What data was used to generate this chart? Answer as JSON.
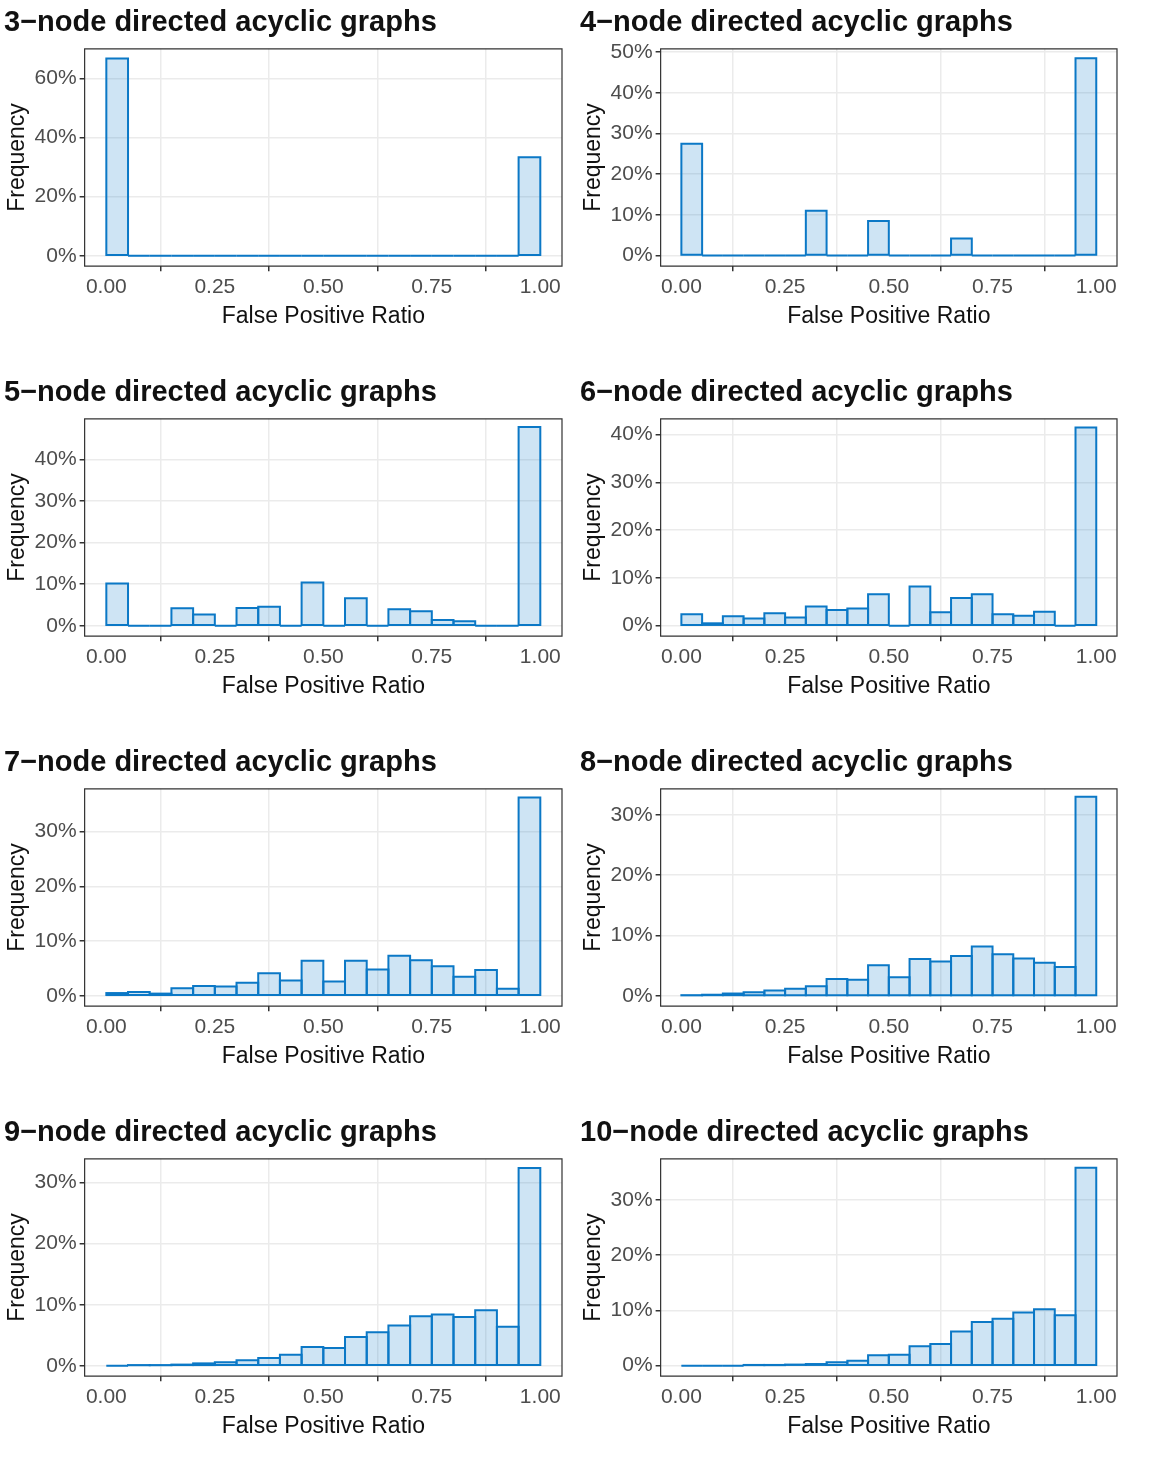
{
  "chart_data": [
    {
      "type": "histogram",
      "title": "3−node directed acyclic graphs",
      "xlabel": "False Positive Ratio",
      "ylabel": "Frequency",
      "color": "#0b78c6",
      "grid": true,
      "bins": [
        0,
        0.05,
        0.1,
        0.15,
        0.2,
        0.25,
        0.3,
        0.35,
        0.4,
        0.45,
        0.5,
        0.55,
        0.6,
        0.65,
        0.7,
        0.75,
        0.8,
        0.85,
        0.9,
        0.95,
        1
      ],
      "values": [
        66.7,
        0,
        0,
        0,
        0,
        0,
        0,
        0,
        0,
        0,
        0,
        0,
        0,
        0,
        0,
        0,
        0,
        0,
        0,
        33.3
      ],
      "xlim": [
        -0.05,
        1.05
      ],
      "xticks": [
        {
          "value": 0,
          "label": "0.00"
        },
        {
          "value": 0.25,
          "label": "0.25"
        },
        {
          "value": 0.5,
          "label": "0.50"
        },
        {
          "value": 0.75,
          "label": "0.75"
        },
        {
          "value": 1,
          "label": "1.00"
        }
      ],
      "ylim": [
        -3.5,
        70
      ],
      "yticks": [
        {
          "value": 0,
          "label": "0%"
        },
        {
          "value": 20,
          "label": "20%"
        },
        {
          "value": 40,
          "label": "40%"
        },
        {
          "value": 60,
          "label": "60%"
        }
      ]
    },
    {
      "type": "histogram",
      "title": "4−node directed acyclic graphs",
      "xlabel": "False Positive Ratio",
      "ylabel": "Frequency",
      "color": "#0b78c6",
      "grid": true,
      "bins": [
        0,
        0.05,
        0.1,
        0.15,
        0.2,
        0.25,
        0.3,
        0.35,
        0.4,
        0.45,
        0.5,
        0.55,
        0.6,
        0.65,
        0.7,
        0.75,
        0.8,
        0.85,
        0.9,
        0.95,
        1
      ],
      "values": [
        27.5,
        0,
        0,
        0,
        0,
        0,
        11,
        0,
        0,
        8.5,
        0,
        0,
        0,
        4.2,
        0,
        0,
        0,
        0,
        0,
        48.5
      ],
      "xlim": [
        -0.05,
        1.05
      ],
      "xticks": [
        {
          "value": 0,
          "label": "0.00"
        },
        {
          "value": 0.25,
          "label": "0.25"
        },
        {
          "value": 0.5,
          "label": "0.50"
        },
        {
          "value": 0.75,
          "label": "0.75"
        },
        {
          "value": 1,
          "label": "1.00"
        }
      ],
      "ylim": [
        -2.6,
        50.8
      ],
      "yticks": [
        {
          "value": 0,
          "label": "0%"
        },
        {
          "value": 10,
          "label": "10%"
        },
        {
          "value": 20,
          "label": "20%"
        },
        {
          "value": 30,
          "label": "30%"
        },
        {
          "value": 40,
          "label": "40%"
        },
        {
          "value": 50,
          "label": "50%"
        }
      ]
    },
    {
      "type": "histogram",
      "title": "5−node directed acyclic graphs",
      "xlabel": "False Positive Ratio",
      "ylabel": "Frequency",
      "color": "#0b78c6",
      "grid": true,
      "bins": [
        0,
        0.05,
        0.1,
        0.15,
        0.2,
        0.25,
        0.3,
        0.35,
        0.4,
        0.45,
        0.5,
        0.55,
        0.6,
        0.65,
        0.7,
        0.75,
        0.8,
        0.85,
        0.9,
        0.95,
        1
      ],
      "values": [
        10.2,
        0,
        0,
        4.2,
        2.7,
        0,
        4.3,
        4.6,
        0,
        10.4,
        0,
        6.6,
        0,
        4,
        3.5,
        1.4,
        1.1,
        0,
        0,
        47.8
      ],
      "xlim": [
        -0.05,
        1.05
      ],
      "xticks": [
        {
          "value": 0,
          "label": "0.00"
        },
        {
          "value": 0.25,
          "label": "0.25"
        },
        {
          "value": 0.5,
          "label": "0.50"
        },
        {
          "value": 0.75,
          "label": "0.75"
        },
        {
          "value": 1,
          "label": "1.00"
        }
      ],
      "ylim": [
        -2.5,
        49.8
      ],
      "yticks": [
        {
          "value": 0,
          "label": "0%"
        },
        {
          "value": 10,
          "label": "10%"
        },
        {
          "value": 20,
          "label": "20%"
        },
        {
          "value": 30,
          "label": "30%"
        },
        {
          "value": 40,
          "label": "40%"
        }
      ]
    },
    {
      "type": "histogram",
      "title": "6−node directed acyclic graphs",
      "xlabel": "False Positive Ratio",
      "ylabel": "Frequency",
      "color": "#0b78c6",
      "grid": true,
      "bins": [
        0,
        0.05,
        0.1,
        0.15,
        0.2,
        0.25,
        0.3,
        0.35,
        0.4,
        0.45,
        0.5,
        0.55,
        0.6,
        0.65,
        0.7,
        0.75,
        0.8,
        0.85,
        0.9,
        0.95,
        1
      ],
      "values": [
        2.4,
        0.5,
        2,
        1.5,
        2.6,
        1.7,
        4,
        3.3,
        3.6,
        6.6,
        0,
        8.2,
        2.8,
        5.8,
        6.6,
        2.4,
        2.1,
        2.9,
        0,
        41.5
      ],
      "xlim": [
        -0.05,
        1.05
      ],
      "xticks": [
        {
          "value": 0,
          "label": "0.00"
        },
        {
          "value": 0.25,
          "label": "0.25"
        },
        {
          "value": 0.5,
          "label": "0.50"
        },
        {
          "value": 0.75,
          "label": "0.75"
        },
        {
          "value": 1,
          "label": "1.00"
        }
      ],
      "ylim": [
        -2.2,
        43.3
      ],
      "yticks": [
        {
          "value": 0,
          "label": "0%"
        },
        {
          "value": 10,
          "label": "10%"
        },
        {
          "value": 20,
          "label": "20%"
        },
        {
          "value": 30,
          "label": "30%"
        },
        {
          "value": 40,
          "label": "40%"
        }
      ]
    },
    {
      "type": "histogram",
      "title": "7−node directed acyclic graphs",
      "xlabel": "False Positive Ratio",
      "ylabel": "Frequency",
      "color": "#0b78c6",
      "grid": true,
      "bins": [
        0,
        0.05,
        0.1,
        0.15,
        0.2,
        0.25,
        0.3,
        0.35,
        0.4,
        0.45,
        0.5,
        0.55,
        0.6,
        0.65,
        0.7,
        0.75,
        0.8,
        0.85,
        0.9,
        0.95,
        1
      ],
      "values": [
        0.5,
        0.7,
        0.4,
        1.4,
        1.8,
        1.7,
        2.4,
        4.1,
        2.8,
        6.4,
        2.6,
        6.4,
        4.8,
        7.3,
        6.5,
        5.4,
        3.5,
        4.7,
        1.3,
        36.2
      ],
      "xlim": [
        -0.05,
        1.05
      ],
      "xticks": [
        {
          "value": 0,
          "label": "0.00"
        },
        {
          "value": 0.25,
          "label": "0.25"
        },
        {
          "value": 0.5,
          "label": "0.50"
        },
        {
          "value": 0.75,
          "label": "0.75"
        },
        {
          "value": 1,
          "label": "1.00"
        }
      ],
      "ylim": [
        -1.9,
        37.8
      ],
      "yticks": [
        {
          "value": 0,
          "label": "0%"
        },
        {
          "value": 10,
          "label": "10%"
        },
        {
          "value": 20,
          "label": "20%"
        },
        {
          "value": 30,
          "label": "30%"
        }
      ]
    },
    {
      "type": "histogram",
      "title": "8−node directed acyclic graphs",
      "xlabel": "False Positive Ratio",
      "ylabel": "Frequency",
      "color": "#0b78c6",
      "grid": true,
      "bins": [
        0,
        0.05,
        0.1,
        0.15,
        0.2,
        0.25,
        0.3,
        0.35,
        0.4,
        0.45,
        0.5,
        0.55,
        0.6,
        0.65,
        0.7,
        0.75,
        0.8,
        0.85,
        0.9,
        0.95,
        1
      ],
      "values": [
        0.1,
        0.2,
        0.4,
        0.6,
        0.9,
        1.2,
        1.6,
        2.8,
        2.7,
        5.1,
        3.1,
        6.1,
        5.7,
        6.6,
        8.2,
        6.9,
        6.2,
        5.5,
        4.8,
        33
      ],
      "xlim": [
        -0.05,
        1.05
      ],
      "xticks": [
        {
          "value": 0,
          "label": "0.00"
        },
        {
          "value": 0.25,
          "label": "0.25"
        },
        {
          "value": 0.5,
          "label": "0.50"
        },
        {
          "value": 0.75,
          "label": "0.75"
        },
        {
          "value": 1,
          "label": "1.00"
        }
      ],
      "ylim": [
        -1.7,
        34.3
      ],
      "yticks": [
        {
          "value": 0,
          "label": "0%"
        },
        {
          "value": 10,
          "label": "10%"
        },
        {
          "value": 20,
          "label": "20%"
        },
        {
          "value": 30,
          "label": "30%"
        }
      ]
    },
    {
      "type": "histogram",
      "title": "9−node directed acyclic graphs",
      "xlabel": "False Positive Ratio",
      "ylabel": "Frequency",
      "color": "#0b78c6",
      "grid": true,
      "bins": [
        0,
        0.05,
        0.1,
        0.15,
        0.2,
        0.25,
        0.3,
        0.35,
        0.4,
        0.45,
        0.5,
        0.55,
        0.6,
        0.65,
        0.7,
        0.75,
        0.8,
        0.85,
        0.9,
        0.95,
        1
      ],
      "values": [
        0,
        0.1,
        0.1,
        0.2,
        0.4,
        0.6,
        0.9,
        1.3,
        1.8,
        3.1,
        2.9,
        4.7,
        5.5,
        6.6,
        8.1,
        8.4,
        8,
        9.1,
        6.4,
        32.4
      ],
      "xlim": [
        -0.05,
        1.05
      ],
      "xticks": [
        {
          "value": 0,
          "label": "0.00"
        },
        {
          "value": 0.25,
          "label": "0.25"
        },
        {
          "value": 0.5,
          "label": "0.50"
        },
        {
          "value": 0.75,
          "label": "0.75"
        },
        {
          "value": 1,
          "label": "1.00"
        }
      ],
      "ylim": [
        -1.7,
        33.9
      ],
      "yticks": [
        {
          "value": 0,
          "label": "0%"
        },
        {
          "value": 10,
          "label": "10%"
        },
        {
          "value": 20,
          "label": "20%"
        },
        {
          "value": 30,
          "label": "30%"
        }
      ]
    },
    {
      "type": "histogram",
      "title": "10−node directed acyclic graphs",
      "xlabel": "False Positive Ratio",
      "ylabel": "Frequency",
      "color": "#0b78c6",
      "grid": true,
      "bins": [
        0,
        0.05,
        0.1,
        0.15,
        0.2,
        0.25,
        0.3,
        0.35,
        0.4,
        0.45,
        0.5,
        0.55,
        0.6,
        0.65,
        0.7,
        0.75,
        0.8,
        0.85,
        0.9,
        0.95,
        1
      ],
      "values": [
        0,
        0,
        0,
        0.1,
        0.1,
        0.2,
        0.3,
        0.6,
        0.9,
        1.9,
        2,
        3.5,
        3.9,
        6.2,
        7.9,
        8.5,
        9.6,
        10.2,
        9.1,
        35.8
      ],
      "xlim": [
        -0.05,
        1.05
      ],
      "xticks": [
        {
          "value": 0,
          "label": "0.00"
        },
        {
          "value": 0.25,
          "label": "0.25"
        },
        {
          "value": 0.5,
          "label": "0.50"
        },
        {
          "value": 0.75,
          "label": "0.75"
        },
        {
          "value": 1,
          "label": "1.00"
        }
      ],
      "ylim": [
        -1.9,
        37.4
      ],
      "yticks": [
        {
          "value": 0,
          "label": "0%"
        },
        {
          "value": 10,
          "label": "10%"
        },
        {
          "value": 20,
          "label": "20%"
        },
        {
          "value": 30,
          "label": "30%"
        }
      ]
    }
  ]
}
